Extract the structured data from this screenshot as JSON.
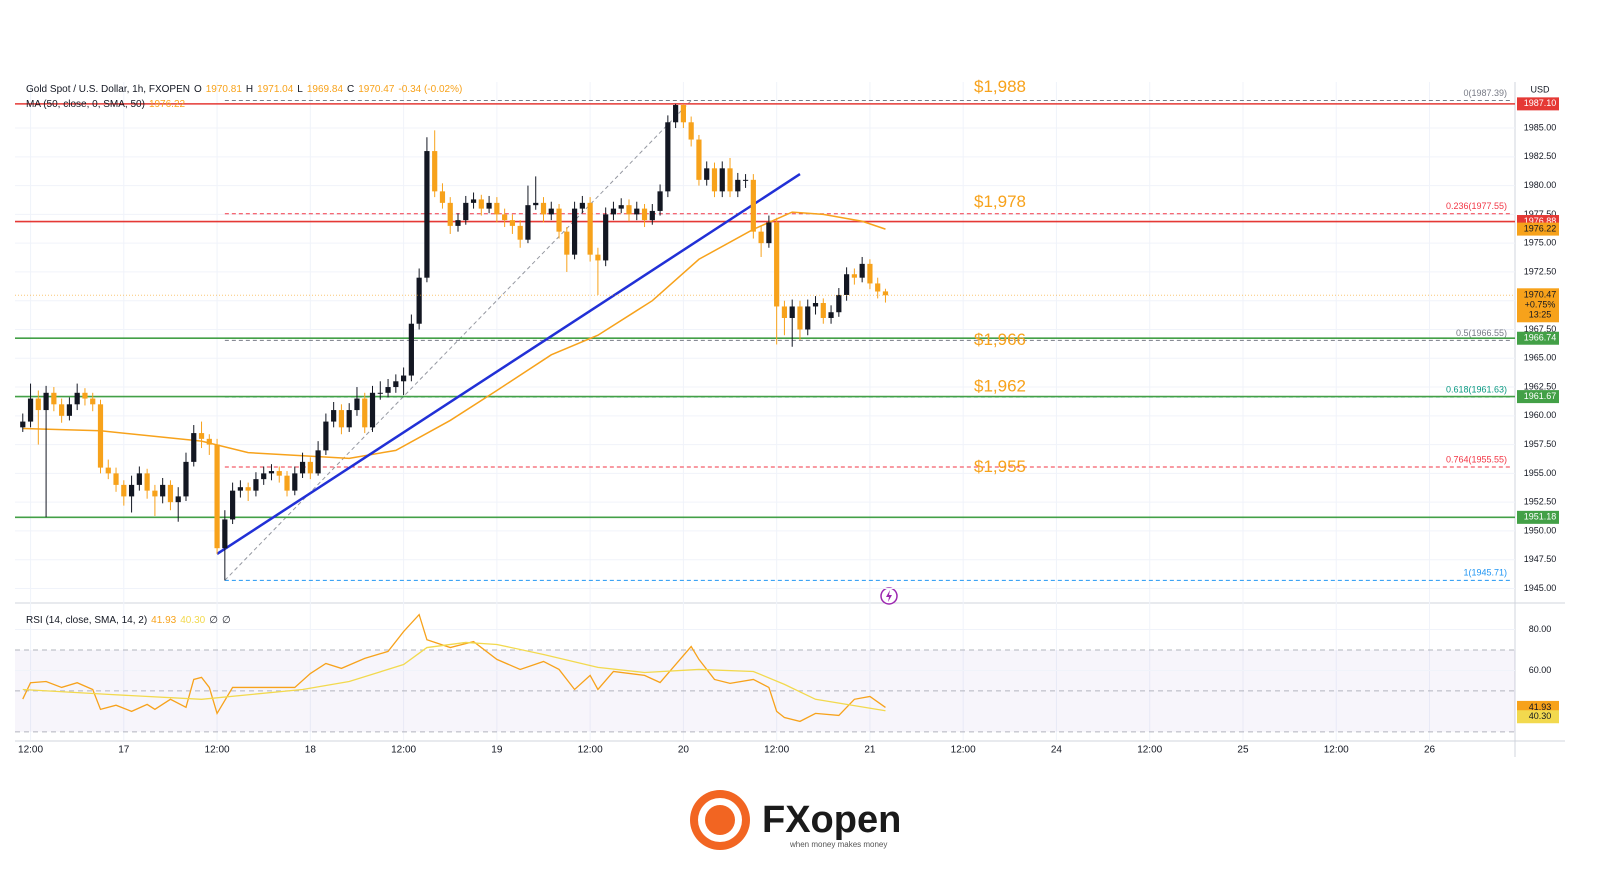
{
  "chart_data": {
    "type": "candlestick",
    "title": "Gold Spot / U.S. Dollar, 1h, FXOPEN",
    "ohlc_legend": [
      {
        "label": "O",
        "value": 1970.81
      },
      {
        "label": "H",
        "value": 1971.04
      },
      {
        "label": "L",
        "value": 1969.84
      },
      {
        "label": "C",
        "value": 1970.47
      }
    ],
    "change_label": "-0.34 (-0.02%)",
    "currency": "USD",
    "xlim": [
      -1,
      192
    ],
    "xticks": [
      {
        "value": 1,
        "label": "12:00"
      },
      {
        "value": 13,
        "label": "17"
      },
      {
        "value": 25,
        "label": "12:00"
      },
      {
        "value": 37,
        "label": "18"
      },
      {
        "value": 49,
        "label": "12:00"
      },
      {
        "value": 61,
        "label": "19"
      },
      {
        "value": 73,
        "label": "12:00"
      },
      {
        "value": 85,
        "label": "20"
      },
      {
        "value": 97,
        "label": "12:00"
      },
      {
        "value": 109,
        "label": "21"
      },
      {
        "value": 121,
        "label": "12:00"
      },
      {
        "value": 133,
        "label": "24"
      },
      {
        "value": 145,
        "label": "12:00"
      },
      {
        "value": 157,
        "label": "25"
      },
      {
        "value": 169,
        "label": "12:00"
      },
      {
        "value": 181,
        "label": "26"
      }
    ],
    "ylim": [
      1944,
      1989
    ],
    "yticks": [
      {
        "value": 1945,
        "label": "1945.00"
      },
      {
        "value": 1947.5,
        "label": "1947.50"
      },
      {
        "value": 1950,
        "label": "1950.00"
      },
      {
        "value": 1952.5,
        "label": "1952.50"
      },
      {
        "value": 1955,
        "label": "1955.00"
      },
      {
        "value": 1957.5,
        "label": "1957.50"
      },
      {
        "value": 1960,
        "label": "1960.00"
      },
      {
        "value": 1962.5,
        "label": "1962.50"
      },
      {
        "value": 1965,
        "label": "1965.00"
      },
      {
        "value": 1967.5,
        "label": "1967.50"
      },
      {
        "value": 1970,
        "label": "1970.00"
      },
      {
        "value": 1972.5,
        "label": "1972.50"
      },
      {
        "value": 1975,
        "label": "1975.00"
      },
      {
        "value": 1977.5,
        "label": "1977.50"
      },
      {
        "value": 1980,
        "label": "1980.00"
      },
      {
        "value": 1982.5,
        "label": "1982.50"
      },
      {
        "value": 1985,
        "label": "1985.00"
      }
    ],
    "grid": true,
    "candles": {
      "up_color": "#131722",
      "down_color": "#f7a21b",
      "ohlc": [
        [
          1959,
          1960.2,
          1958.6,
          1959.5
        ],
        [
          1959.5,
          1962.8,
          1959,
          1961.5
        ],
        [
          1961.5,
          1962.2,
          1957.5,
          1960.5
        ],
        [
          1960.5,
          1962.6,
          1951.2,
          1962
        ],
        [
          1962,
          1962.5,
          1960.4,
          1961
        ],
        [
          1961,
          1961.5,
          1959.4,
          1960
        ],
        [
          1960,
          1961.6,
          1959.6,
          1961
        ],
        [
          1961,
          1962.8,
          1960.5,
          1962
        ],
        [
          1962,
          1962.4,
          1960.9,
          1961.5
        ],
        [
          1961.5,
          1962,
          1960.4,
          1961
        ],
        [
          1961,
          1961.4,
          1955,
          1955.5
        ],
        [
          1955.5,
          1956.2,
          1954.5,
          1955
        ],
        [
          1955,
          1955.5,
          1953.4,
          1954
        ],
        [
          1954,
          1954.4,
          1952.2,
          1953
        ],
        [
          1953,
          1954.8,
          1951.6,
          1954
        ],
        [
          1954,
          1955.6,
          1953.5,
          1955
        ],
        [
          1955,
          1955.4,
          1952.8,
          1953.5
        ],
        [
          1953.5,
          1954,
          1951.3,
          1953
        ],
        [
          1953,
          1954.6,
          1952.4,
          1954
        ],
        [
          1954,
          1954.4,
          1951.8,
          1952.5
        ],
        [
          1952.5,
          1953.8,
          1950.8,
          1953
        ],
        [
          1953,
          1956.8,
          1952.6,
          1956
        ],
        [
          1956,
          1959.2,
          1955.6,
          1958.5
        ],
        [
          1958.5,
          1959.5,
          1957.2,
          1958
        ],
        [
          1958,
          1958.4,
          1956.6,
          1957.5
        ],
        [
          1957.5,
          1958,
          1948,
          1948.5
        ],
        [
          1948.5,
          1951.8,
          1945.7,
          1951
        ],
        [
          1951,
          1954.2,
          1950.6,
          1953.5
        ],
        [
          1953.5,
          1954.4,
          1952.9,
          1953.8
        ],
        [
          1953.8,
          1954.2,
          1952.6,
          1953.5
        ],
        [
          1953.5,
          1955.1,
          1953,
          1954.5
        ],
        [
          1954.5,
          1955.6,
          1954,
          1955
        ],
        [
          1955,
          1955.8,
          1954.4,
          1955.2
        ],
        [
          1955.2,
          1955.6,
          1954.2,
          1954.8
        ],
        [
          1954.8,
          1955.2,
          1953,
          1953.5
        ],
        [
          1953.5,
          1955.6,
          1953.1,
          1955
        ],
        [
          1955,
          1956.8,
          1954.6,
          1956
        ],
        [
          1956,
          1956.4,
          1954.5,
          1955
        ],
        [
          1955,
          1957.8,
          1954.8,
          1957
        ],
        [
          1957,
          1960.2,
          1956.6,
          1959.5
        ],
        [
          1959.5,
          1961.2,
          1959,
          1960.5
        ],
        [
          1960.5,
          1961,
          1958.4,
          1959
        ],
        [
          1959,
          1961.1,
          1958.6,
          1960.5
        ],
        [
          1960.5,
          1962.5,
          1960,
          1961.5
        ],
        [
          1961.5,
          1962,
          1958.5,
          1959
        ],
        [
          1959,
          1962.6,
          1958.6,
          1962
        ],
        [
          1962,
          1963,
          1961.4,
          1962
        ],
        [
          1962,
          1963.2,
          1961.6,
          1962.5
        ],
        [
          1962.5,
          1963.6,
          1962,
          1963
        ],
        [
          1963,
          1964.2,
          1961.8,
          1963.5
        ],
        [
          1963.5,
          1968.8,
          1963,
          1968
        ],
        [
          1968,
          1972.8,
          1967.5,
          1972
        ],
        [
          1972,
          1984.2,
          1971.6,
          1983
        ],
        [
          1983,
          1984.8,
          1979,
          1979.5
        ],
        [
          1979.5,
          1980.2,
          1978,
          1978.5
        ],
        [
          1978.5,
          1979,
          1975.8,
          1976.5
        ],
        [
          1976.5,
          1977.6,
          1976,
          1977
        ],
        [
          1977,
          1979.1,
          1976.6,
          1978.5
        ],
        [
          1978.5,
          1979.4,
          1978,
          1978.8
        ],
        [
          1978.8,
          1979.2,
          1977.4,
          1978
        ],
        [
          1978,
          1979.1,
          1977.6,
          1978.5
        ],
        [
          1978.5,
          1979,
          1976.8,
          1977.5
        ],
        [
          1977.5,
          1978,
          1976.4,
          1977
        ],
        [
          1977,
          1977.5,
          1975.8,
          1976.5
        ],
        [
          1976.5,
          1977,
          1974.6,
          1975.3
        ],
        [
          1975.3,
          1980,
          1975,
          1978.3
        ],
        [
          1978.3,
          1980.8,
          1977.9,
          1978.5
        ],
        [
          1978.5,
          1979,
          1976.8,
          1977.5
        ],
        [
          1977.5,
          1978.6,
          1977,
          1978
        ],
        [
          1978,
          1978.4,
          1975.4,
          1976
        ],
        [
          1976,
          1976.4,
          1972.5,
          1974
        ],
        [
          1974,
          1978.6,
          1973.6,
          1978
        ],
        [
          1978,
          1979.1,
          1977.6,
          1978.5
        ],
        [
          1978.5,
          1979,
          1973.4,
          1974
        ],
        [
          1974,
          1974.6,
          1970.5,
          1973.5
        ],
        [
          1973.5,
          1978.1,
          1973,
          1977.5
        ],
        [
          1977.5,
          1978.6,
          1977,
          1978
        ],
        [
          1978,
          1978.9,
          1977.6,
          1978.3
        ],
        [
          1978.3,
          1978.8,
          1976.9,
          1977.5
        ],
        [
          1977.5,
          1978.6,
          1977,
          1978
        ],
        [
          1978,
          1978.4,
          1976.4,
          1977
        ],
        [
          1977,
          1978.4,
          1976.6,
          1977.8
        ],
        [
          1977.8,
          1980.1,
          1977.4,
          1979.5
        ],
        [
          1979.5,
          1986.1,
          1979,
          1985.5
        ],
        [
          1985.5,
          1987.1,
          1985,
          1987
        ],
        [
          1987,
          1987.1,
          1985,
          1985.5
        ],
        [
          1985.5,
          1986,
          1983.4,
          1984
        ],
        [
          1984,
          1984.4,
          1980,
          1980.5
        ],
        [
          1980.5,
          1982.1,
          1980,
          1981.5
        ],
        [
          1981.5,
          1982,
          1979,
          1979.5
        ],
        [
          1979.5,
          1982.1,
          1979,
          1981.5
        ],
        [
          1981.5,
          1982.4,
          1979,
          1979.5
        ],
        [
          1979.5,
          1981.1,
          1979,
          1980.5
        ],
        [
          1980.5,
          1981,
          1979.8,
          1980.5
        ],
        [
          1980.5,
          1981,
          1975.4,
          1976
        ],
        [
          1976,
          1976.5,
          1973.8,
          1975
        ],
        [
          1975,
          1977.4,
          1974.6,
          1976.8
        ],
        [
          1976.8,
          1977.2,
          1966.2,
          1969.5
        ],
        [
          1969.5,
          1970,
          1967,
          1968.5
        ],
        [
          1968.5,
          1970.1,
          1966,
          1969.5
        ],
        [
          1969.5,
          1970,
          1966.6,
          1967.5
        ],
        [
          1967.5,
          1970.1,
          1967,
          1969.5
        ],
        [
          1969.5,
          1970.4,
          1968.8,
          1969.8
        ],
        [
          1969.8,
          1970.2,
          1968,
          1968.5
        ],
        [
          1968.5,
          1969.6,
          1968,
          1969
        ],
        [
          1969,
          1971.1,
          1968.6,
          1970.5
        ],
        [
          1970.5,
          1972.9,
          1970,
          1972.3
        ],
        [
          1972.3,
          1972.8,
          1971.4,
          1972
        ],
        [
          1972,
          1973.8,
          1971.6,
          1973.2
        ],
        [
          1973.2,
          1973.6,
          1971,
          1971.5
        ],
        [
          1971.5,
          1972,
          1970.2,
          1970.8
        ],
        [
          1970.81,
          1971.04,
          1969.84,
          1970.47
        ]
      ]
    },
    "price_tag": {
      "change": "+0.75%",
      "countdown": "13:25"
    },
    "series": [
      {
        "name": "MA (50, close, 0, SMA, 50)",
        "color": "#f7a21b",
        "x": [
          0,
          10,
          23,
          29,
          42,
          48,
          55,
          61,
          68,
          74,
          81,
          87,
          94,
          99,
          103,
          108,
          111
        ],
        "values": [
          1958.9,
          1958.7,
          1957.8,
          1956.8,
          1956.3,
          1957,
          1959.6,
          1962.2,
          1965.3,
          1967,
          1970,
          1973.6,
          1976.2,
          1977.7,
          1977.5,
          1976.9,
          1976.22
        ]
      }
    ],
    "trendline": {
      "color": "#2130d6",
      "x": [
        25,
        100
      ],
      "values": [
        1948,
        1981
      ]
    },
    "levels": [
      {
        "value": 1987.1,
        "label": "1987.10",
        "color": "#e53935"
      },
      {
        "value": 1976.88,
        "label": "1976.88",
        "color": "#e53935"
      },
      {
        "value": 1966.74,
        "label": "1966.74",
        "color": "#43a047"
      },
      {
        "value": 1961.67,
        "label": "1961.67",
        "color": "#43a047"
      },
      {
        "value": 1951.18,
        "label": "1951.18",
        "color": "#43a047"
      }
    ],
    "fib_x": [
      26,
      86
    ],
    "fib_levels": [
      {
        "label": "0(1987.39)",
        "value": 1987.39,
        "color": "#787b86"
      },
      {
        "label": "0.236(1977.55)",
        "value": 1977.55,
        "color": "#f23645"
      },
      {
        "label": "0.5(1966.55)",
        "value": 1966.55,
        "color": "#787b86"
      },
      {
        "label": "0.618(1961.63)",
        "value": 1961.63,
        "color": "#089981"
      },
      {
        "label": "0.764(1955.55)",
        "value": 1955.55,
        "color": "#f23645"
      },
      {
        "label": "1(1945.71)",
        "value": 1945.71,
        "color": "#2196f3"
      }
    ],
    "annotations": [
      {
        "text": "$1,988",
        "value": 1988
      },
      {
        "text": "$1,978",
        "value": 1978
      },
      {
        "text": "$1,966",
        "value": 1966
      },
      {
        "text": "$1,962",
        "value": 1962
      },
      {
        "text": "$1,955",
        "value": 1955
      }
    ],
    "annotation_color": "#f7a21b",
    "rsi": {
      "title": "RSI (14, close, SMA, 14, 2)",
      "ylim": [
        26,
        92
      ],
      "yticks": [
        {
          "value": 60,
          "label": "60.00"
        },
        {
          "value": 80,
          "label": "80.00"
        }
      ],
      "bands": [
        70,
        50,
        30
      ],
      "flags": [
        "∅",
        "∅"
      ],
      "series": [
        {
          "name": "RSI",
          "color": "#f7a21b",
          "x": [
            0,
            1,
            3,
            5,
            7,
            9,
            10,
            12,
            14,
            16,
            17,
            19,
            21,
            22,
            23,
            24,
            25,
            27,
            30,
            35,
            37,
            39,
            41,
            44,
            47,
            49,
            51,
            52,
            55,
            58,
            61,
            64,
            67,
            69,
            71,
            73,
            74,
            76,
            80,
            82,
            84,
            86,
            87,
            89,
            91,
            94,
            96,
            97,
            98,
            100,
            102,
            105,
            107,
            109,
            111
          ],
          "values": [
            46,
            54,
            54.6,
            51.7,
            54,
            50.7,
            41,
            43,
            40,
            43.4,
            41,
            45.9,
            42,
            55.6,
            56.6,
            51.7,
            39,
            51.7,
            51.7,
            51.7,
            58.5,
            63.4,
            61,
            65.9,
            69.3,
            79,
            87.3,
            75,
            71.2,
            74.1,
            65.4,
            60.5,
            64.4,
            60.5,
            50.7,
            57.6,
            50.7,
            59.5,
            57.6,
            54.1,
            62.9,
            71.7,
            65.4,
            55.6,
            53.7,
            55.6,
            51.7,
            40,
            37,
            35.1,
            39,
            38,
            45.9,
            47.3,
            41.93
          ]
        },
        {
          "name": "SMA",
          "color": "#f2d94e",
          "x": [
            0,
            11,
            23,
            36,
            42,
            49,
            52,
            57,
            61,
            67,
            74,
            80,
            87,
            94,
            98,
            102,
            106,
            111
          ],
          "values": [
            50.7,
            48.3,
            45.9,
            50.7,
            54.6,
            62.9,
            71.2,
            73.7,
            72.7,
            67.8,
            61.5,
            59,
            60.5,
            59.5,
            53.2,
            45.9,
            43.4,
            40.3
          ],
          "value_labels": [
            null,
            null,
            null,
            null,
            null,
            null,
            null,
            null,
            null,
            null,
            null,
            null,
            null,
            null,
            null,
            null,
            null,
            "40.30"
          ]
        }
      ]
    }
  },
  "logo": {
    "brand": "FXopen",
    "tagline": "when money makes money"
  }
}
